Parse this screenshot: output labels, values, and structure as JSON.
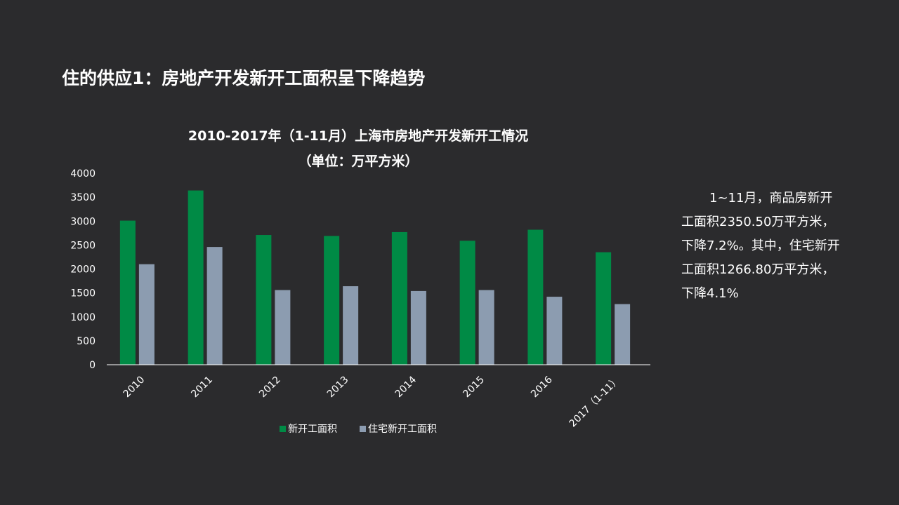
{
  "slide": {
    "title": "住的供应1：房地产开发新开工面积呈下降趋势"
  },
  "note": {
    "lines": [
      "1~11月，商品房新开",
      "工面积2350.50万平方米，",
      "下降7.2%。其中，住宅新开",
      "工面积1266.80万平方米，",
      "下降4.1%"
    ]
  },
  "chart_data": {
    "type": "bar",
    "title_line1": "2010-2017年（1-11月）上海市房地产开发新开工情况",
    "title_line2": "（单位：万平方米）",
    "categories": [
      "2010",
      "2011",
      "2012",
      "2013",
      "2014",
      "2015",
      "2016",
      "2017（1-11）"
    ],
    "series": [
      {
        "name": "新开工面积",
        "color": "#008a45",
        "values": [
          3010,
          3640,
          2710,
          2690,
          2770,
          2590,
          2820,
          2350
        ]
      },
      {
        "name": "住宅新开工面积",
        "color": "#8c9cb0",
        "values": [
          2100,
          2460,
          1560,
          1640,
          1540,
          1560,
          1420,
          1267
        ]
      }
    ],
    "yticks": [
      "0",
      "500",
      "1000",
      "1500",
      "2000",
      "2500",
      "3000",
      "3500",
      "4000"
    ],
    "ylim": [
      0,
      4000
    ],
    "legend": "bottom",
    "grid": false
  }
}
